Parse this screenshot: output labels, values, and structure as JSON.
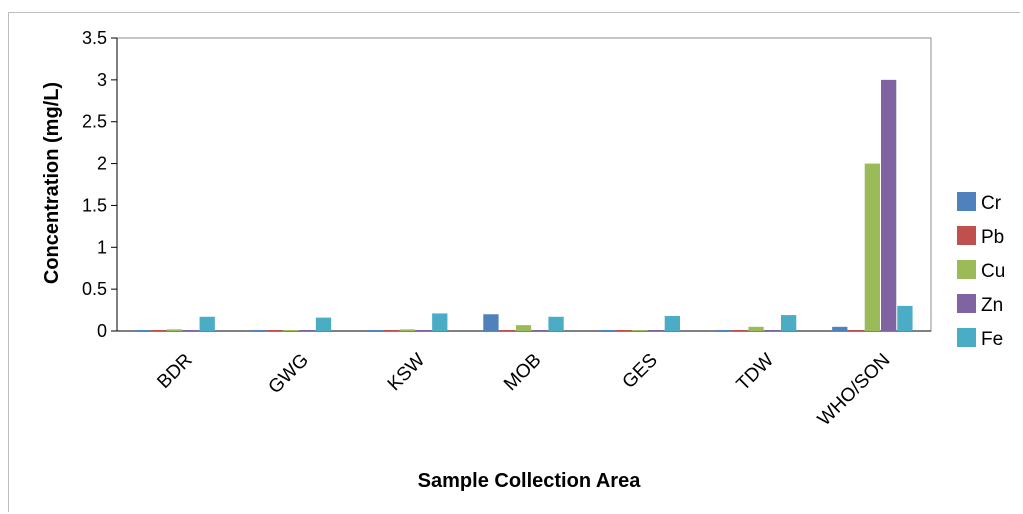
{
  "chart_data": {
    "type": "bar",
    "title": "",
    "xlabel": "Sample Collection Area",
    "ylabel": "Concentration (mg/L)",
    "ylim": [
      0,
      3.5
    ],
    "yticks": [
      "0",
      "0.5",
      "1",
      "1.5",
      "2",
      "2.5",
      "3",
      "3.5"
    ],
    "categories": [
      "BDR",
      "GWG",
      "KSW",
      "MOB",
      "GES",
      "TDW",
      "WHO/SON"
    ],
    "series": [
      {
        "name": "Cr",
        "color": "#4f81bd",
        "values": [
          0.002,
          0.002,
          0.002,
          0.2,
          0.002,
          0.002,
          0.05
        ]
      },
      {
        "name": "Pb",
        "color": "#c0504d",
        "values": [
          0.001,
          0.001,
          0.001,
          0.002,
          0.001,
          0.001,
          0.01
        ]
      },
      {
        "name": "Cu",
        "color": "#9bbb59",
        "values": [
          0.02,
          0.01,
          0.02,
          0.07,
          0.01,
          0.05,
          2.0
        ]
      },
      {
        "name": "Zn",
        "color": "#8064a2",
        "values": [
          0.003,
          0.003,
          0.003,
          0.003,
          0.003,
          0.003,
          3.0
        ]
      },
      {
        "name": "Fe",
        "color": "#4bacc6",
        "values": [
          0.17,
          0.16,
          0.21,
          0.17,
          0.18,
          0.19,
          0.3
        ]
      }
    ],
    "grid": false,
    "legend": "right"
  }
}
